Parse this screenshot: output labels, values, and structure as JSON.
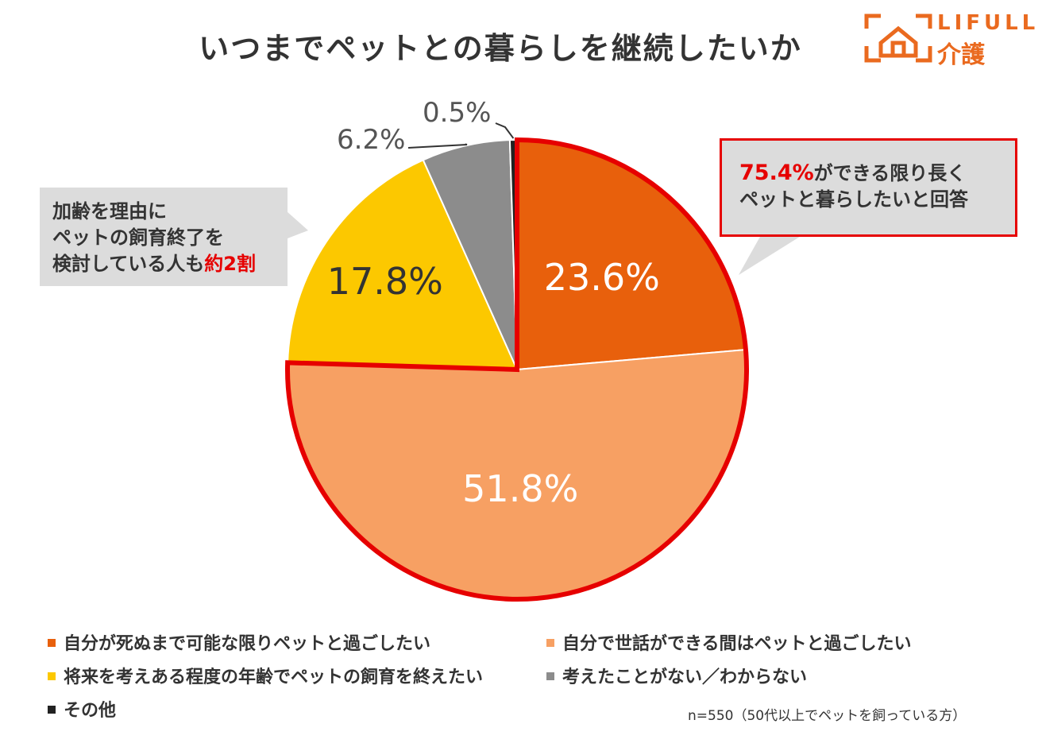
{
  "title": "いつまでペットとの暮らしを継続したいか",
  "logo": {
    "brand": "LIFULL",
    "service": "介護",
    "color": "#ea6a1f"
  },
  "chart_data": {
    "type": "pie",
    "title": "いつまでペットとの暮らしを継続したいか",
    "start_angle_deg": 0,
    "direction": "clockwise",
    "slices": [
      {
        "label": "自分が死ぬまで可能な限りペットと過ごしたい",
        "value": 23.6,
        "display": "23.6%",
        "color": "#e8600c"
      },
      {
        "label": "自分で世話ができる間はペットと過ごしたい",
        "value": 51.8,
        "display": "51.8%",
        "color": "#f7a063"
      },
      {
        "label": "将来を考えある程度の年齢でペットの飼育を終えたい",
        "value": 17.8,
        "display": "17.8%",
        "color": "#fcc800"
      },
      {
        "label": "考えたことがない／わからない",
        "value": 6.2,
        "display": "6.2%",
        "color": "#8c8c8c"
      },
      {
        "label": "その他",
        "value": 0.5,
        "display": "0.5%",
        "color": "#222222"
      }
    ],
    "highlight": {
      "slices": [
        0,
        1
      ],
      "total": "75.4%",
      "color": "#e60000"
    }
  },
  "notes": {
    "left": {
      "line1": "加齢を理由に",
      "line2": "ペットの飼育終了を",
      "line3a": "検討している人も",
      "line3b": "約2割"
    },
    "right": {
      "line1a": "75.4%",
      "line1b": "ができる限り長く",
      "line2": "ペットと暮らしたいと回答"
    }
  },
  "footnote": "n=550（50代以上でペットを飼っている方）"
}
